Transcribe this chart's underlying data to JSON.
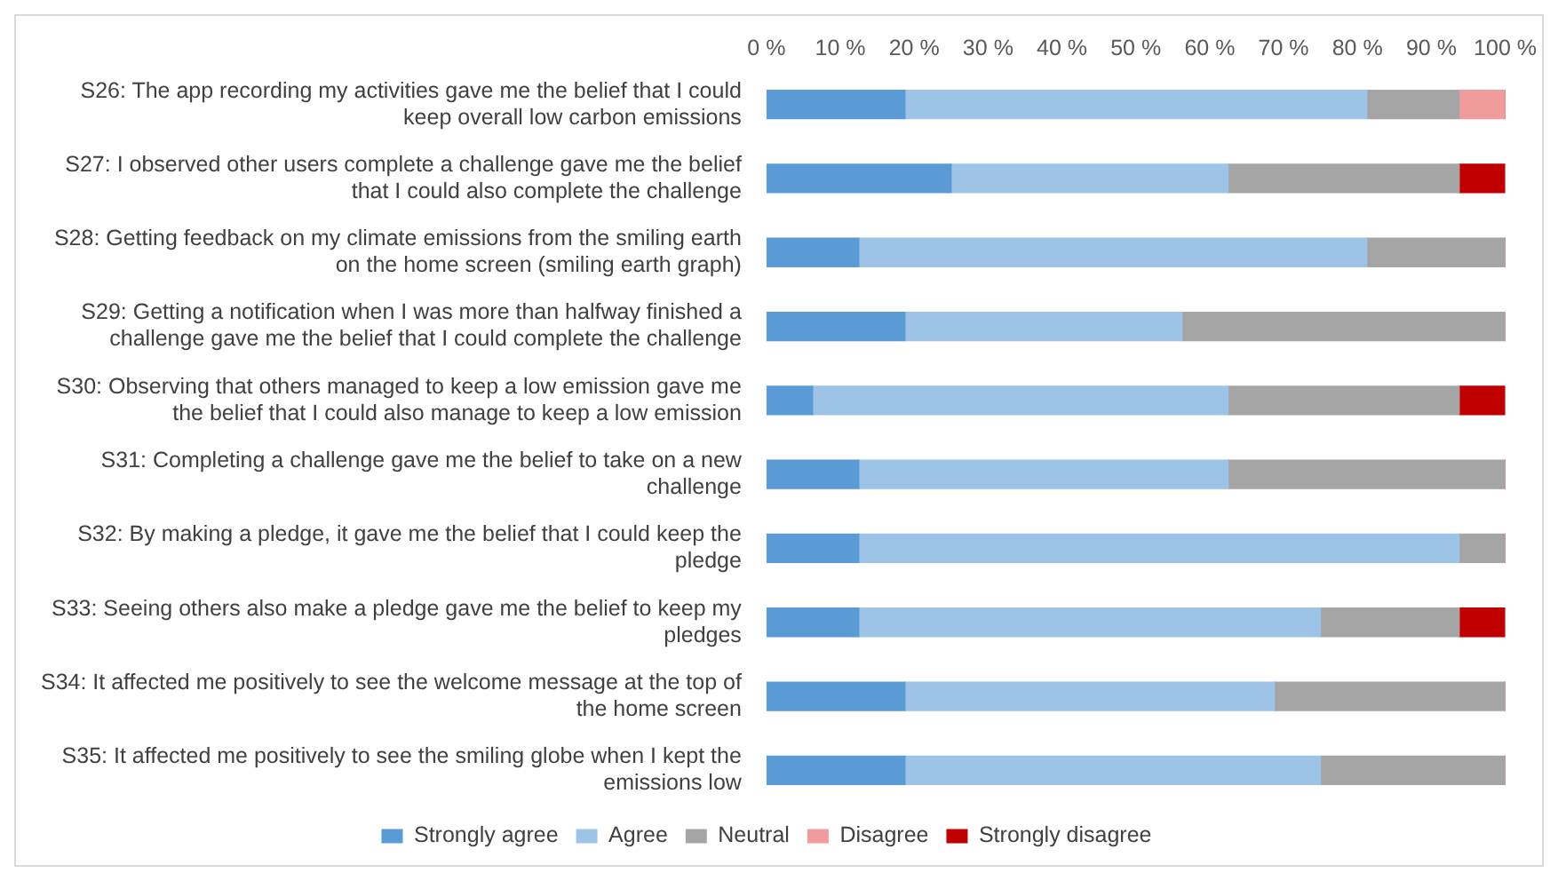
{
  "chart_data": {
    "type": "bar",
    "orientation": "horizontal",
    "stacked": true,
    "categories": [
      "S26: The app recording my activities gave me the belief that I could keep overall low carbon emissions",
      "S27: I observed other users complete a challenge gave me the belief that I could also complete the challenge",
      "S28: Getting feedback on my climate emissions from the smiling earth on the home screen (smiling earth graph)",
      "S29: Getting a notification when I was more than halfway finished a challenge gave me the belief that I could complete the challenge",
      "S30: Observing that others managed to keep a low emission gave me the belief that I could also manage to keep a low emission",
      "S31: Completing a challenge gave me the belief to take on a new challenge",
      "S32: By making a pledge, it gave me the belief that I could keep the pledge",
      "S33: Seeing others also make a pledge gave me the belief to keep my pledges",
      "S34: It affected me positively to see the welcome message at the top of the home screen",
      "S35: It affected me positively to see the smiling globe when I kept the emissions low"
    ],
    "series": [
      {
        "name": "Strongly agree",
        "color": "#5b9bd5",
        "values": [
          18.75,
          25,
          12.5,
          18.75,
          6.25,
          12.5,
          12.5,
          12.5,
          18.75,
          18.75
        ]
      },
      {
        "name": "Agree",
        "color": "#9dc3e6",
        "values": [
          62.5,
          37.5,
          68.75,
          37.5,
          56.25,
          50,
          81.25,
          62.5,
          50,
          56.25
        ]
      },
      {
        "name": "Neutral",
        "color": "#a5a5a5",
        "values": [
          12.5,
          31.25,
          18.75,
          43.75,
          31.25,
          37.5,
          6.25,
          18.75,
          31.25,
          25
        ]
      },
      {
        "name": "Disagree",
        "color": "#f19c9c",
        "values": [
          6.25,
          0,
          0,
          0,
          0,
          0,
          0,
          0,
          0,
          0
        ]
      },
      {
        "name": "Strongly disagree",
        "color": "#c00000",
        "values": [
          0,
          6.25,
          0,
          0,
          6.25,
          0,
          0,
          6.25,
          0,
          0
        ]
      }
    ],
    "xlim": [
      0,
      100
    ],
    "xticks": [
      {
        "value": 0,
        "label": "0 %"
      },
      {
        "value": 10,
        "label": "10 %"
      },
      {
        "value": 20,
        "label": "20 %"
      },
      {
        "value": 30,
        "label": "30 %"
      },
      {
        "value": 40,
        "label": "40 %"
      },
      {
        "value": 50,
        "label": "50 %"
      },
      {
        "value": 60,
        "label": "60 %"
      },
      {
        "value": 70,
        "label": "70 %"
      },
      {
        "value": 80,
        "label": "80 %"
      },
      {
        "value": 90,
        "label": "90 %"
      },
      {
        "value": 100,
        "label": "100 %"
      }
    ],
    "grid": false,
    "legend": "bottom"
  }
}
